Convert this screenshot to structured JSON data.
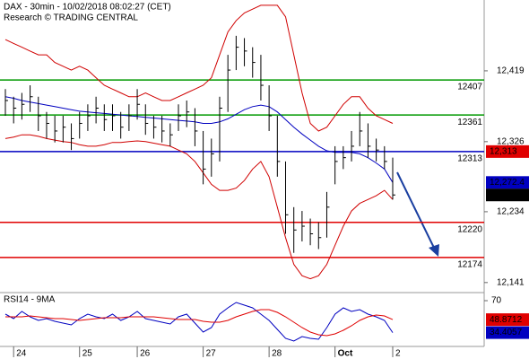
{
  "chart_data": {
    "type": "hlc",
    "title": "DAX - 30min - 10/02/2018 08:02:27 (CET)",
    "subtitle": "Research © TRADING CENTRAL",
    "categories": [
      null,
      "24",
      null,
      null,
      null,
      null,
      null,
      null,
      null,
      "25",
      null,
      null,
      null,
      null,
      null,
      null,
      "26",
      null,
      null,
      null,
      null,
      null,
      null,
      null,
      "27",
      null,
      null,
      null,
      null,
      null,
      null,
      null,
      "28",
      null,
      null,
      null,
      null,
      null,
      null,
      null,
      "Oct",
      null,
      null,
      null,
      null,
      null,
      null,
      "2"
    ],
    "high": [
      12395,
      12385,
      12390,
      12400,
      12385,
      12365,
      12360,
      12360,
      12350,
      12365,
      12375,
      12385,
      12375,
      12375,
      12365,
      12375,
      12395,
      12375,
      12360,
      12360,
      12350,
      12375,
      12380,
      12370,
      12340,
      12330,
      12385,
      12440,
      12465,
      12462,
      12450,
      12440,
      12400,
      12360,
      12300,
      12240,
      12235,
      12225,
      12220,
      12260,
      12320,
      12320,
      12340,
      12365,
      12350,
      12330,
      12320,
      12305
    ],
    "low": [
      12360,
      12350,
      12355,
      12365,
      12340,
      12330,
      12325,
      12325,
      12315,
      12330,
      12340,
      12350,
      12340,
      12340,
      12330,
      12340,
      12355,
      12335,
      12330,
      12325,
      12320,
      12340,
      12345,
      12320,
      12270,
      12280,
      12300,
      12365,
      12420,
      12425,
      12410,
      12380,
      12340,
      12280,
      12205,
      12180,
      12195,
      12190,
      12185,
      12200,
      12270,
      12290,
      12300,
      12320,
      12305,
      12300,
      12290,
      12250
    ],
    "close": [
      12380,
      12370,
      12375,
      12385,
      12360,
      12350,
      12340,
      12345,
      12330,
      12350,
      12360,
      12370,
      12355,
      12360,
      12345,
      12360,
      12375,
      12350,
      12345,
      12340,
      12335,
      12360,
      12365,
      12340,
      12290,
      12310,
      12370,
      12420,
      12450,
      12445,
      12430,
      12400,
      12360,
      12300,
      12230,
      12210,
      12215,
      12205,
      12200,
      12240,
      12300,
      12305,
      12320,
      12340,
      12320,
      12315,
      12300,
      12256
    ],
    "color": "#000000",
    "bands": [
      {
        "color": "#d00000",
        "values": [
          12460,
          12455,
          12450,
          12445,
          12440,
          12440,
          12430,
          12425,
          12420,
          12425,
          12420,
          12410,
          12400,
          12395,
          12390,
          12385,
          12385,
          12390,
          12385,
          12380,
          12380,
          12385,
          12390,
          12395,
          12400,
          12410,
          12440,
          12470,
          12485,
          12495,
          12500,
          12505,
          12505,
          12505,
          12490,
          12440,
          12390,
          12350,
          12340,
          12345,
          12360,
          12375,
          12385,
          12385,
          12370,
          12360,
          12355,
          12350
        ]
      },
      {
        "color": "#0000c0",
        "values": [
          12385,
          12383,
          12380,
          12378,
          12376,
          12374,
          12372,
          12370,
          12368,
          12366,
          12365,
          12364,
          12363,
          12362,
          12361,
          12360,
          12359,
          12358,
          12357,
          12356,
          12355,
          12354,
          12353,
          12352,
          12350,
          12350,
          12352,
          12356,
          12362,
          12368,
          12372,
          12374,
          12372,
          12365,
          12355,
          12345,
          12336,
          12328,
          12320,
          12314,
          12312,
          12312,
          12312,
          12310,
          12305,
          12298,
          12290,
          12272.4
        ]
      },
      {
        "color": "#d00000",
        "values": [
          12330,
          12332,
          12335,
          12335,
          12333,
          12330,
          12328,
          12326,
          12325,
          12322,
          12320,
          12320,
          12322,
          12325,
          12325,
          12326,
          12327,
          12326,
          12324,
          12322,
          12320,
          12315,
          12310,
          12300,
          12285,
          12270,
          12262,
          12262,
          12265,
          12275,
          12290,
          12300,
          12280,
          12240,
          12200,
          12165,
          12150,
          12146,
          12150,
          12165,
          12190,
          12215,
          12235,
          12245,
          12250,
          12255,
          12262,
          12250
        ]
      }
    ],
    "levels": [
      {
        "value": 12407,
        "color": "#009900"
      },
      {
        "value": 12361,
        "color": "#009900"
      },
      {
        "value": 12313,
        "color": "#0000c0"
      },
      {
        "value": 12220,
        "color": "#e00000"
      },
      {
        "value": 12174,
        "color": "#e00000"
      }
    ],
    "price_tags": [
      {
        "value": 12313,
        "label": "12,313",
        "color": "#e00000"
      },
      {
        "value": 12272.4,
        "label": "12,272.4",
        "color": "#0000c0"
      },
      {
        "value": 12256,
        "label": "12,256",
        "color": "#000000"
      }
    ],
    "ylim": [
      12129,
      12512
    ],
    "yticks": [
      {
        "value": 12419,
        "label": "12,419"
      },
      {
        "value": 12326,
        "label": "12,326"
      },
      {
        "value": 12234,
        "label": "12,234"
      },
      {
        "value": 12141,
        "label": "12,141"
      }
    ],
    "rsi": {
      "label": "RSI14 - 9MA",
      "ylim": [
        20,
        77
      ],
      "yticks": [
        70
      ],
      "series": [
        {
          "color": "#0000c0",
          "values": [
            55,
            50,
            58,
            52,
            48,
            50,
            47,
            45,
            43,
            50,
            55,
            52,
            50,
            55,
            48,
            52,
            58,
            50,
            48,
            46,
            44,
            52,
            55,
            45,
            35,
            40,
            55,
            62,
            68,
            65,
            62,
            55,
            48,
            38,
            28,
            25,
            30,
            28,
            27,
            40,
            55,
            62,
            58,
            60,
            55,
            52,
            48,
            34.4057
          ]
        },
        {
          "color": "#e00000",
          "values": [
            52,
            52,
            52,
            53,
            52,
            51,
            50,
            50,
            49,
            48,
            49,
            50,
            51,
            51,
            51,
            52,
            52,
            52,
            52,
            51,
            50,
            49,
            49,
            49,
            47,
            46,
            46,
            48,
            52,
            55,
            58,
            60,
            60,
            57,
            52,
            46,
            40,
            35,
            32,
            31,
            33,
            37,
            42,
            48,
            52,
            54,
            53,
            48.8712
          ]
        }
      ]
    }
  }
}
